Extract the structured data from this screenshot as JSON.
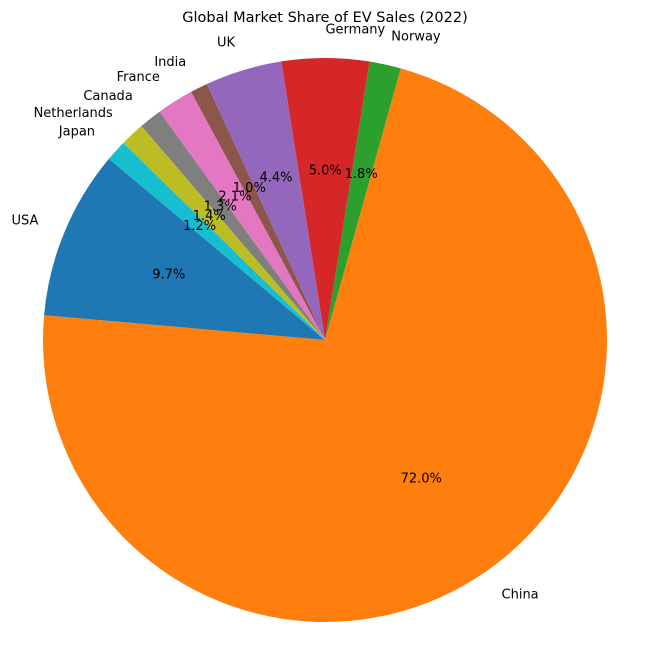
{
  "chart_data": {
    "type": "pie",
    "title": "Global Market Share of EV Sales (2022)",
    "start_angle_deg": 140,
    "direction": "counterclockwise",
    "label_format": "percent_one_decimal",
    "slices": [
      {
        "label": "USA",
        "value": 9.7,
        "pct_label": "9.7%",
        "color": "#1f77b4"
      },
      {
        "label": "China",
        "value": 72.0,
        "pct_label": "72.0%",
        "color": "#ff7f0e"
      },
      {
        "label": "Norway",
        "value": 1.8,
        "pct_label": "1.8%",
        "color": "#2ca02c"
      },
      {
        "label": "Germany",
        "value": 5.0,
        "pct_label": "5.0%",
        "color": "#d62728"
      },
      {
        "label": "UK",
        "value": 4.4,
        "pct_label": "4.4%",
        "color": "#9467bd"
      },
      {
        "label": "India",
        "value": 1.0,
        "pct_label": "1.0%",
        "color": "#8c564b"
      },
      {
        "label": "France",
        "value": 2.1,
        "pct_label": "2.1%",
        "color": "#e377c2"
      },
      {
        "label": "Canada",
        "value": 1.3,
        "pct_label": "1.3%",
        "color": "#7f7f7f"
      },
      {
        "label": "Netherlands",
        "value": 1.4,
        "pct_label": "1.4%",
        "color": "#bcbd22"
      },
      {
        "label": "Japan",
        "value": 1.2,
        "pct_label": "1.2%",
        "color": "#17becf"
      }
    ]
  }
}
